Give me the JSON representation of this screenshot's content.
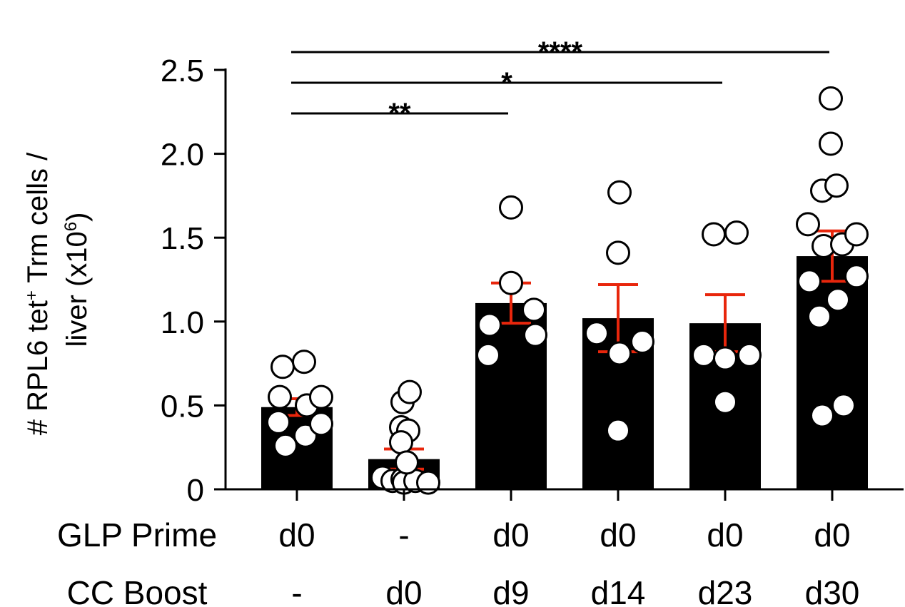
{
  "chart_data": {
    "type": "bar",
    "categories": [
      "d0|-",
      "-|d0",
      "d0|d9",
      "d0|d14",
      "d0|d23",
      "d0|d30"
    ],
    "ylabel": {
      "line1_a": "# RPL6 tet",
      "line1_sup": "+",
      "line1_b": " Trm cells /",
      "line2_a": "liver (x10",
      "line2_sup": "6",
      "line2_b": ")"
    },
    "ylim": [
      0,
      2.5
    ],
    "yticks": [
      {
        "value": 0,
        "label": "0"
      },
      {
        "value": 0.5,
        "label": "0.5"
      },
      {
        "value": 1.0,
        "label": "1.0"
      },
      {
        "value": 1.5,
        "label": "1.5"
      },
      {
        "value": 2.0,
        "label": "2.0"
      },
      {
        "value": 2.5,
        "label": "2.5"
      }
    ],
    "rows": [
      {
        "title": "GLP Prime",
        "values": [
          "d0",
          "-",
          "d0",
          "d0",
          "d0",
          "d0"
        ]
      },
      {
        "title": "CC Boost",
        "values": [
          "-",
          "d0",
          "d9",
          "d14",
          "d23",
          "d30"
        ]
      }
    ],
    "bar_color": "#000000",
    "error_color": "#e8260c",
    "series": [
      {
        "mean": 0.49,
        "sem": 0.05,
        "points": [
          [
            -16,
            0.26
          ],
          [
            -26,
            0.4
          ],
          [
            -24,
            0.55
          ],
          [
            -20,
            0.73
          ],
          [
            10,
            0.76
          ],
          [
            12,
            0.32
          ],
          [
            14,
            0.5
          ],
          [
            34,
            0.55
          ],
          [
            34,
            0.39
          ]
        ]
      },
      {
        "mean": 0.18,
        "sem": 0.06,
        "points": [
          [
            -30,
            0.07
          ],
          [
            -16,
            0.05
          ],
          [
            -2,
            0.06
          ],
          [
            0,
            0.04
          ],
          [
            16,
            0.05
          ],
          [
            34,
            0.04
          ],
          [
            -4,
            0.37
          ],
          [
            -2,
            0.52
          ],
          [
            6,
            0.35
          ],
          [
            8,
            0.58
          ],
          [
            -4,
            0.28
          ],
          [
            4,
            0.16
          ]
        ]
      },
      {
        "mean": 1.11,
        "sem": 0.12,
        "points": [
          [
            -32,
            0.8
          ],
          [
            -30,
            0.98
          ],
          [
            0,
            1.68
          ],
          [
            0,
            1.23
          ],
          [
            32,
            1.07
          ],
          [
            34,
            0.92
          ]
        ]
      },
      {
        "mean": 1.02,
        "sem": 0.2,
        "points": [
          [
            -30,
            0.93
          ],
          [
            0,
            1.41
          ],
          [
            2,
            0.81
          ],
          [
            2,
            1.77
          ],
          [
            34,
            0.88
          ],
          [
            0,
            0.35
          ]
        ]
      },
      {
        "mean": 0.99,
        "sem": 0.17,
        "points": [
          [
            -30,
            0.8
          ],
          [
            0,
            0.78
          ],
          [
            34,
            0.8
          ],
          [
            0,
            0.52
          ],
          [
            -16,
            1.52
          ],
          [
            16,
            1.53
          ]
        ]
      },
      {
        "mean": 1.39,
        "sem": 0.15,
        "points": [
          [
            -34,
            1.58
          ],
          [
            -14,
            1.78
          ],
          [
            6,
            1.81
          ],
          [
            -2,
            2.06
          ],
          [
            -2,
            2.33
          ],
          [
            -12,
            1.45
          ],
          [
            14,
            1.46
          ],
          [
            34,
            1.52
          ],
          [
            -32,
            1.24
          ],
          [
            34,
            1.27
          ],
          [
            8,
            1.13
          ],
          [
            -18,
            1.03
          ],
          [
            -14,
            0.44
          ],
          [
            16,
            0.5
          ]
        ]
      }
    ],
    "significance": [
      {
        "from": 0,
        "to": 2,
        "label": "**"
      },
      {
        "from": 0,
        "to": 4,
        "label": "*"
      },
      {
        "from": 0,
        "to": 5,
        "label": "****"
      }
    ]
  }
}
